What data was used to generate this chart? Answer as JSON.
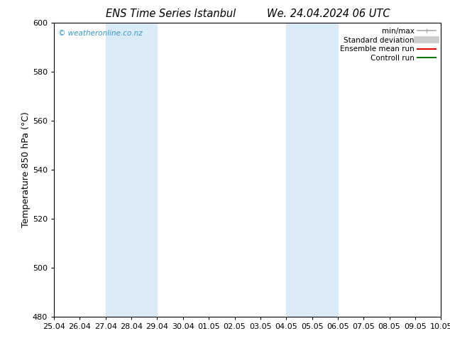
{
  "title_left": "ENS Time Series Istanbul",
  "title_right": "We. 24.04.2024 06 UTC",
  "ylabel": "Temperature 850 hPa (°C)",
  "ylim": [
    480,
    600
  ],
  "yticks": [
    480,
    500,
    520,
    540,
    560,
    580,
    600
  ],
  "xlim": [
    0,
    15
  ],
  "xtick_labels": [
    "25.04",
    "26.04",
    "27.04",
    "28.04",
    "29.04",
    "30.04",
    "01.05",
    "02.05",
    "03.05",
    "04.05",
    "05.05",
    "06.05",
    "07.05",
    "08.05",
    "09.05",
    "10.05"
  ],
  "xtick_positions": [
    0,
    1,
    2,
    3,
    4,
    5,
    6,
    7,
    8,
    9,
    10,
    11,
    12,
    13,
    14,
    15
  ],
  "weekend_bands": [
    {
      "xmin": 2,
      "xmax": 4,
      "color": "#daeaf7"
    },
    {
      "xmin": 9,
      "xmax": 11,
      "color": "#daeaf7"
    }
  ],
  "watermark": "© weatheronline.co.nz",
  "watermark_color": "#3399cc",
  "legend_items": [
    {
      "label": "min/max",
      "color": "#aaaaaa",
      "lw": 1.2
    },
    {
      "label": "Standard deviation",
      "color": "#cccccc",
      "lw": 6
    },
    {
      "label": "Ensemble mean run",
      "color": "#dd0000",
      "lw": 1.5
    },
    {
      "label": "Controll run",
      "color": "#007700",
      "lw": 1.5
    }
  ],
  "bg_color": "#ffffff",
  "title_fontsize": 10.5,
  "tick_fontsize": 8,
  "ylabel_fontsize": 9
}
